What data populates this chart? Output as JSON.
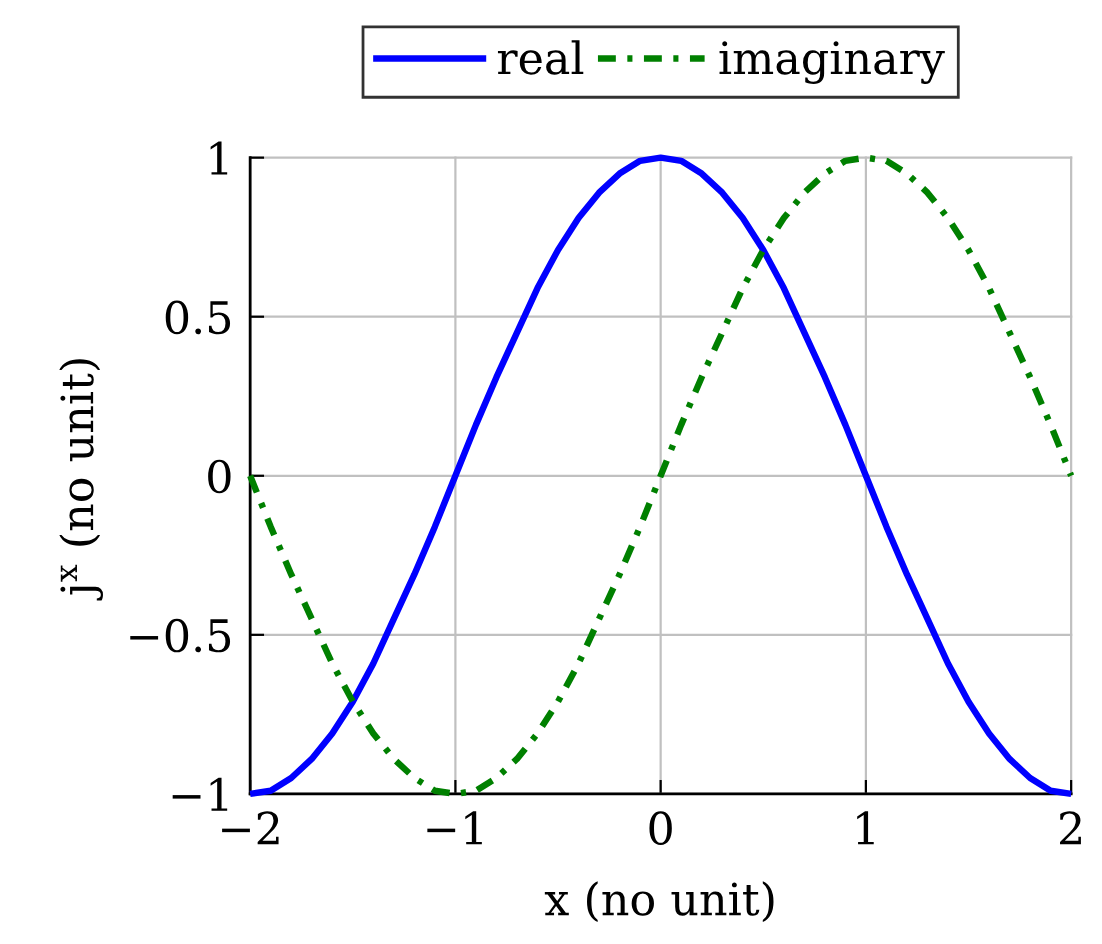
{
  "chart_data": {
    "type": "line",
    "xlabel": "x (no unit)",
    "ylabel": "j$^{x}$ (no unit)",
    "xlim": [
      -2,
      2
    ],
    "xticks": [
      -2,
      -1,
      0,
      1,
      2
    ],
    "ylim": [
      -1,
      1
    ],
    "yticks": [
      -1,
      -0.5,
      0,
      0.5,
      1
    ],
    "grid": true,
    "legend": "top",
    "marker": "none",
    "x": [
      -2,
      -1.9,
      -1.8,
      -1.7,
      -1.6,
      -1.5,
      -1.4,
      -1.3,
      -1.2,
      -1.1,
      -1,
      -0.9,
      -0.8,
      -0.7,
      -0.6,
      -0.5,
      -0.4,
      -0.3,
      -0.2,
      -0.1,
      0,
      0.1,
      0.2,
      0.3,
      0.4,
      0.5,
      0.6,
      0.7,
      0.8,
      0.9,
      1,
      1.1,
      1.2,
      1.3,
      1.4,
      1.5,
      1.6,
      1.7,
      1.8,
      1.9,
      2
    ],
    "series": [
      {
        "name": "real",
        "color": "#0000ff",
        "line_style": "solid",
        "values": [
          -1,
          -0.99,
          -0.95,
          -0.89,
          -0.81,
          -0.71,
          -0.59,
          -0.45,
          -0.31,
          -0.16,
          0,
          0.16,
          0.31,
          0.45,
          0.59,
          0.71,
          0.81,
          0.89,
          0.95,
          0.99,
          1,
          0.99,
          0.95,
          0.89,
          0.81,
          0.71,
          0.59,
          0.45,
          0.31,
          0.16,
          0,
          -0.16,
          -0.31,
          -0.45,
          -0.59,
          -0.71,
          -0.81,
          -0.89,
          -0.95,
          -0.99,
          -1
        ]
      },
      {
        "name": "imaginary",
        "color": "#008000",
        "line_style": "dashdot",
        "values": [
          0,
          -0.16,
          -0.31,
          -0.45,
          -0.59,
          -0.71,
          -0.81,
          -0.89,
          -0.95,
          -0.99,
          -1,
          -0.99,
          -0.95,
          -0.89,
          -0.81,
          -0.71,
          -0.59,
          -0.45,
          -0.31,
          -0.16,
          0,
          0.16,
          0.31,
          0.45,
          0.59,
          0.71,
          0.81,
          0.89,
          0.95,
          0.99,
          1,
          0.99,
          0.95,
          0.89,
          0.81,
          0.71,
          0.59,
          0.45,
          0.31,
          0.16,
          0
        ]
      }
    ]
  }
}
